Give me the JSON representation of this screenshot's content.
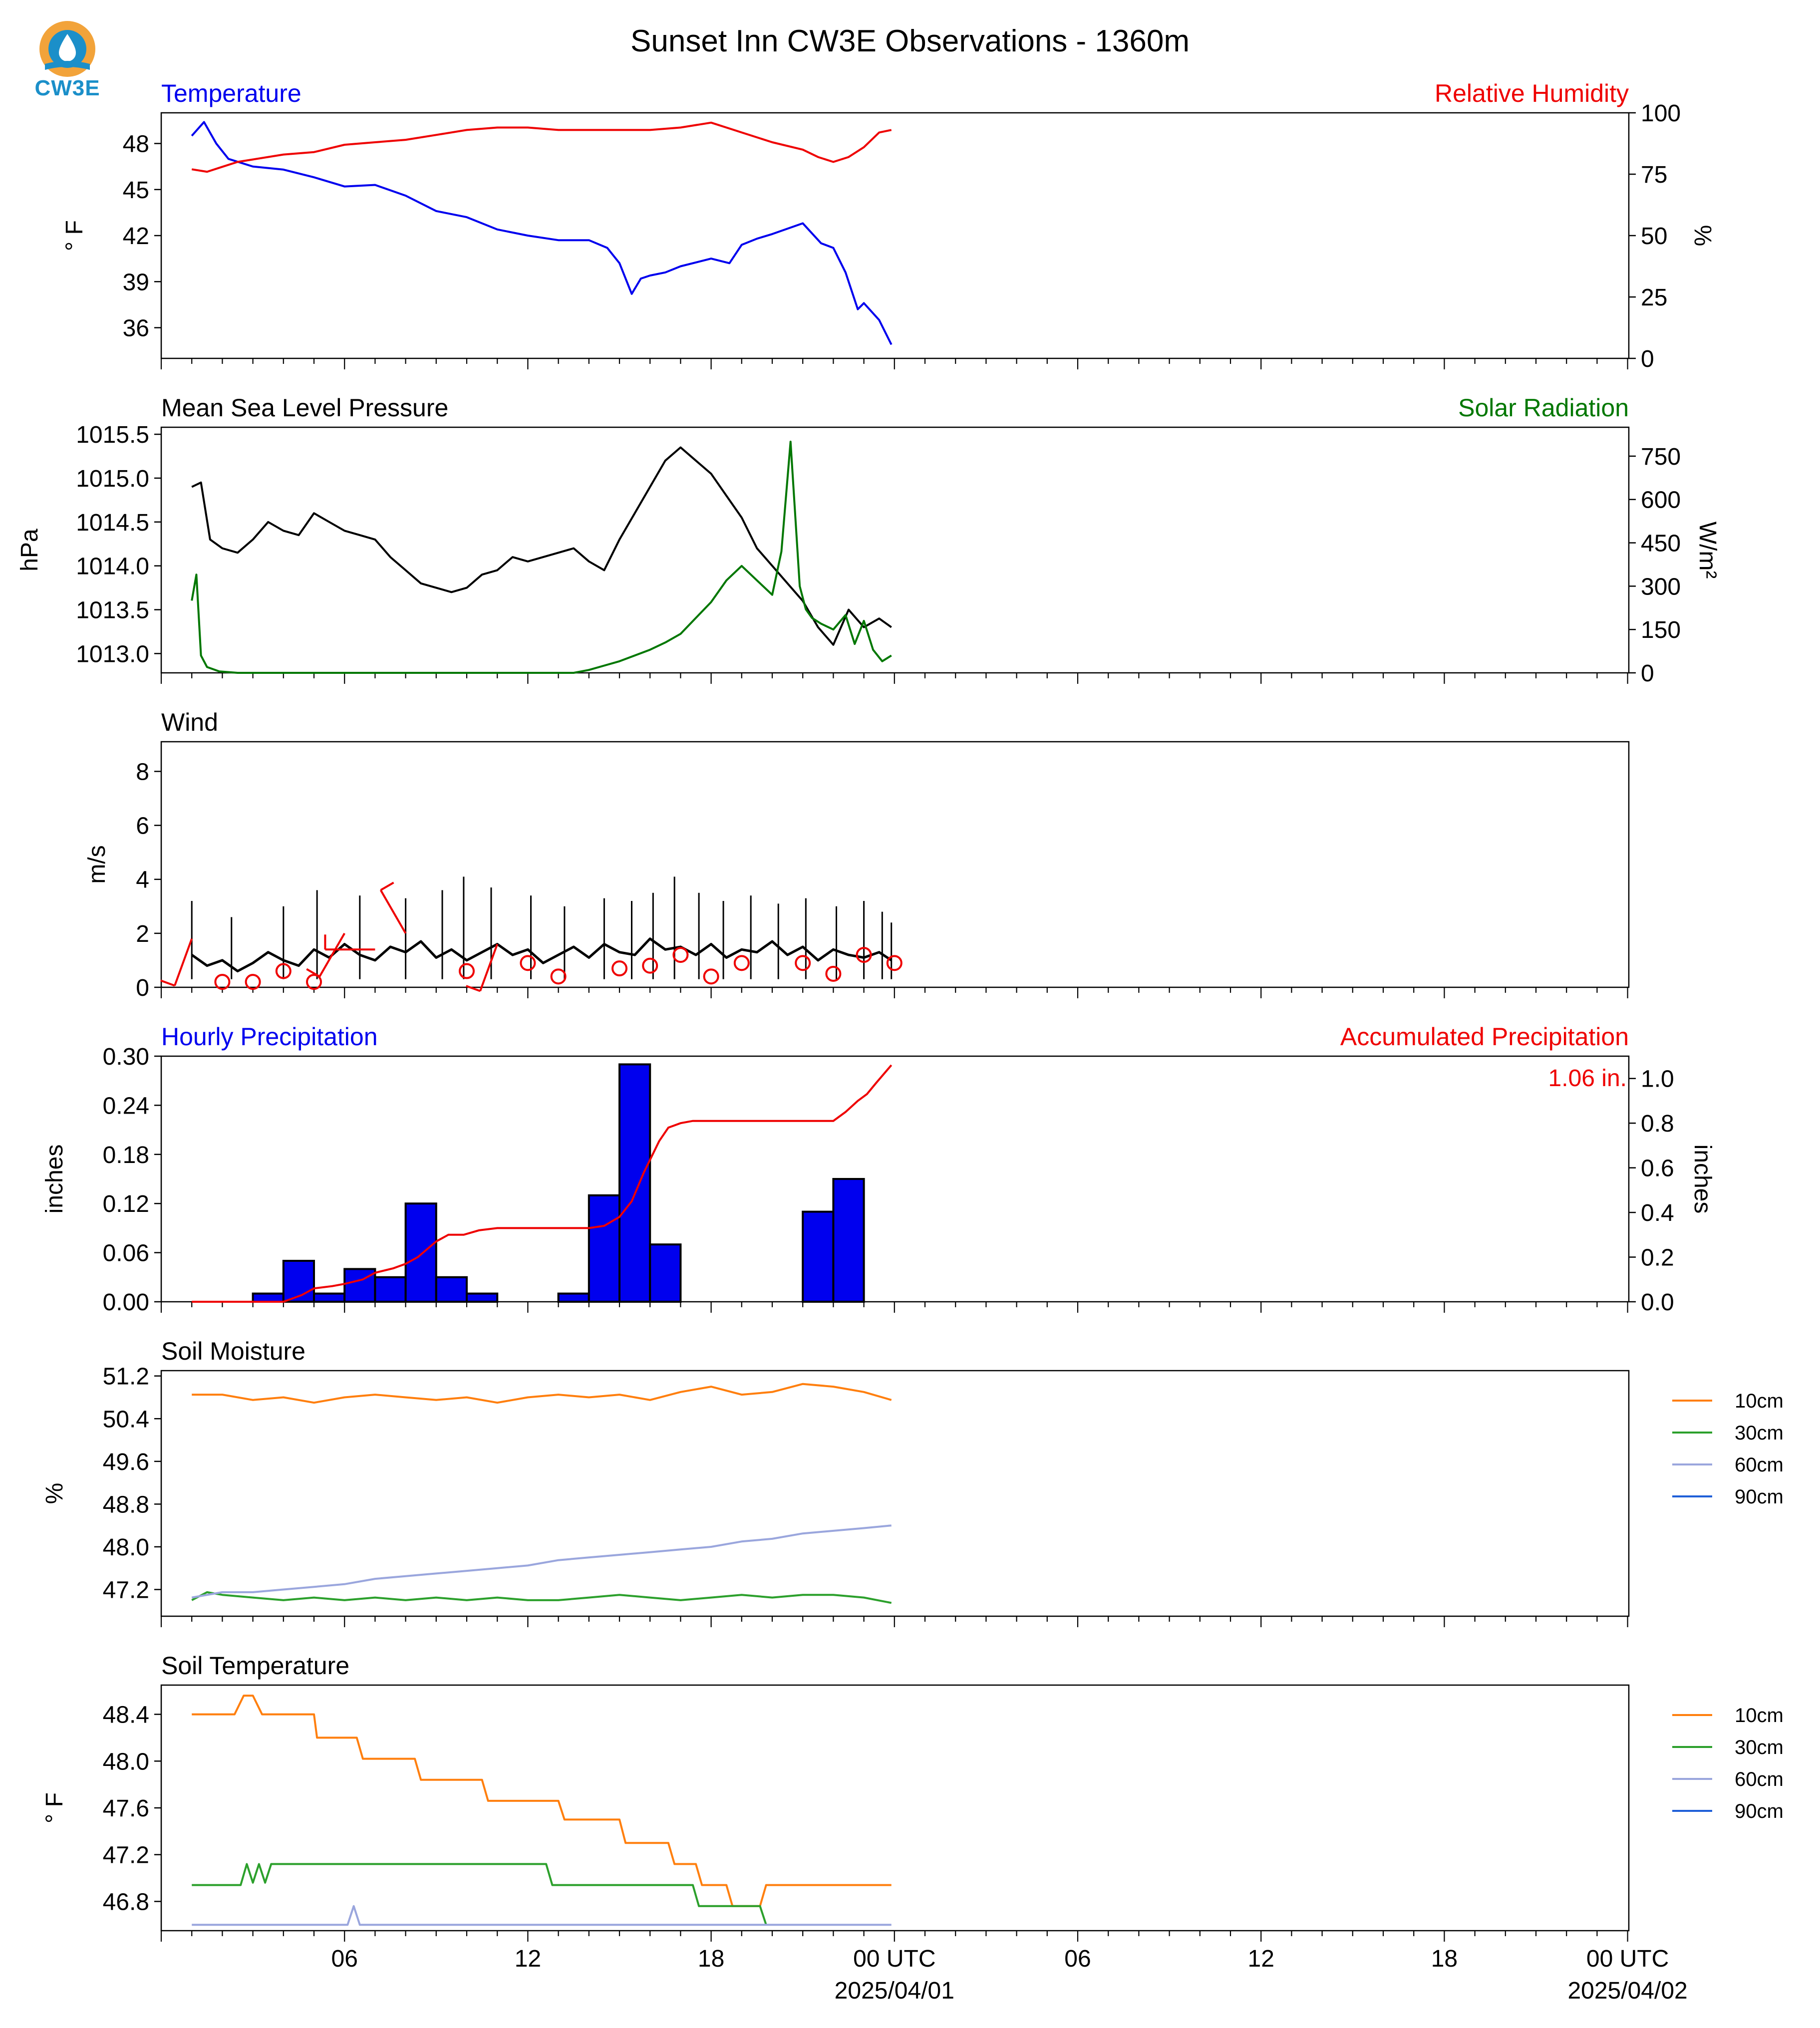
{
  "title": "Sunset Inn CW3E Observations - 1360m",
  "logo_text": "CW3E",
  "colors": {
    "temp": "#0000ee",
    "rh": "#ee0000",
    "pres": "#000000",
    "solar": "#007700",
    "sm10": "#ff7f0e",
    "sm30": "#2ca02c",
    "sm60": "#9aa6dd",
    "sm90": "#1f5fd8",
    "bar": "#0000ee"
  },
  "x_axis": {
    "tick_labels": [
      "06",
      "12",
      "18",
      "00 UTC",
      "06",
      "12",
      "18",
      "00 UTC"
    ],
    "date_labels": [
      "2025/04/01",
      "2025/04/02"
    ]
  },
  "chart_data": [
    {
      "type": "line",
      "id": "temperature",
      "title_left": "Temperature",
      "title_right": "Relative Humidity",
      "ylabel_left": "° F",
      "ylabel_right": "%",
      "ylim_left": [
        34,
        50
      ],
      "yticks_left": [
        36,
        39,
        42,
        45,
        48
      ],
      "ylim_right": [
        0,
        100
      ],
      "yticks_right": [
        0,
        25,
        50,
        75,
        100
      ],
      "series": [
        {
          "axis": "left",
          "x": [
            1,
            1.4,
            1.8,
            2.2,
            3,
            4,
            5,
            6,
            7,
            8,
            9,
            10,
            11,
            12,
            13,
            14,
            14.6,
            15,
            15.4,
            15.7,
            16,
            16.5,
            17,
            18,
            18.6,
            19,
            19.5,
            20,
            21,
            21.6,
            22,
            22.4,
            22.8,
            23,
            23.5,
            23.9
          ],
          "values": [
            48.5,
            49.4,
            48.0,
            47.0,
            46.5,
            46.3,
            45.8,
            45.2,
            45.3,
            44.6,
            43.6,
            43.2,
            42.4,
            42.0,
            41.7,
            41.7,
            41.2,
            40.2,
            38.2,
            39.2,
            39.4,
            39.6,
            40.0,
            40.5,
            40.2,
            41.4,
            41.8,
            42.1,
            42.8,
            41.5,
            41.2,
            39.6,
            37.2,
            37.6,
            36.5,
            34.9
          ]
        },
        {
          "axis": "right",
          "x": [
            1,
            1.5,
            2,
            2.5,
            3,
            4,
            5,
            6,
            7,
            8,
            9,
            10,
            11,
            12,
            13,
            14,
            15,
            16,
            17,
            18,
            18.5,
            19,
            20,
            21,
            21.5,
            22,
            22.5,
            23,
            23.5,
            23.9
          ],
          "values": [
            77,
            76,
            78,
            80,
            81,
            83,
            84,
            87,
            88,
            89,
            91,
            93,
            94,
            94,
            93,
            93,
            93,
            93,
            94,
            96,
            94,
            92,
            88,
            85,
            82,
            80,
            82,
            86,
            92,
            93
          ]
        }
      ]
    },
    {
      "type": "line",
      "id": "pressure",
      "title_left": "Mean Sea Level Pressure",
      "title_right": "Solar Radiation",
      "ylabel_left": "hPa",
      "ylabel_right": "W/m²",
      "ylim_left": [
        1012.78,
        1015.58
      ],
      "yticks_left": [
        1013.0,
        1013.5,
        1014.0,
        1014.5,
        1015.0,
        1015.5
      ],
      "ytick_labels_left": [
        "1013.0",
        "1013.5",
        "1014.0",
        "1014.5",
        "1015.0",
        "1015.5"
      ],
      "ylim_right": [
        0,
        850
      ],
      "yticks_right": [
        0,
        150,
        300,
        450,
        600,
        750
      ],
      "series": [
        {
          "axis": "left",
          "x": [
            1,
            1.3,
            1.6,
            2,
            2.5,
            3,
            3.5,
            4,
            4.5,
            5,
            5.5,
            6,
            6.5,
            7,
            7.5,
            8,
            8.5,
            9,
            9.5,
            10,
            10.5,
            11,
            11.5,
            12,
            12.5,
            13,
            13.5,
            14,
            14.5,
            15,
            15.5,
            16,
            16.5,
            17,
            17.5,
            18,
            18.5,
            19,
            19.5,
            20,
            20.5,
            21,
            21.5,
            22,
            22.5,
            23,
            23.5,
            23.9
          ],
          "values": [
            1014.9,
            1014.95,
            1014.3,
            1014.2,
            1014.15,
            1014.3,
            1014.5,
            1014.4,
            1014.35,
            1014.6,
            1014.5,
            1014.4,
            1014.35,
            1014.3,
            1014.1,
            1013.95,
            1013.8,
            1013.75,
            1013.7,
            1013.75,
            1013.9,
            1013.95,
            1014.1,
            1014.05,
            1014.1,
            1014.15,
            1014.2,
            1014.05,
            1013.95,
            1014.3,
            1014.6,
            1014.9,
            1015.2,
            1015.35,
            1015.2,
            1015.05,
            1014.8,
            1014.55,
            1014.2,
            1014.0,
            1013.8,
            1013.6,
            1013.3,
            1013.1,
            1013.5,
            1013.3,
            1013.4,
            1013.3
          ]
        },
        {
          "axis": "right",
          "x": [
            1,
            1.15,
            1.3,
            1.5,
            1.9,
            2.5,
            4,
            6,
            8,
            10,
            12,
            13,
            13.5,
            14,
            14.5,
            15,
            15.5,
            16,
            16.5,
            17,
            17.5,
            18,
            18.5,
            19,
            19.5,
            20,
            20.3,
            20.6,
            20.9,
            21.1,
            21.3,
            21.6,
            22,
            22.4,
            22.7,
            23,
            23.3,
            23.6,
            23.9
          ],
          "values": [
            250,
            340,
            60,
            20,
            5,
            0,
            0,
            0,
            0,
            0,
            0,
            0,
            0,
            10,
            25,
            40,
            60,
            80,
            105,
            135,
            190,
            245,
            320,
            370,
            320,
            270,
            420,
            800,
            300,
            220,
            190,
            170,
            150,
            200,
            100,
            180,
            80,
            40,
            60
          ]
        }
      ]
    },
    {
      "type": "line",
      "id": "wind",
      "title_left": "Wind",
      "ylabel_left": "m/s",
      "ylim_left": [
        0,
        9.1
      ],
      "yticks_left": [
        0,
        2,
        4,
        6,
        8
      ],
      "series": [
        {
          "axis": "left",
          "x": [
            1,
            1.5,
            2,
            2.5,
            3,
            3.5,
            4,
            4.5,
            5,
            5.5,
            6,
            6.5,
            7,
            7.5,
            8,
            8.5,
            9,
            9.5,
            10,
            10.5,
            11,
            11.5,
            12,
            12.5,
            13,
            13.5,
            14,
            14.5,
            15,
            15.5,
            16,
            16.5,
            17,
            17.5,
            18,
            18.5,
            19,
            19.5,
            20,
            20.5,
            21,
            21.5,
            22,
            22.5,
            23,
            23.5,
            23.9
          ],
          "values": [
            1.2,
            0.8,
            1.0,
            0.6,
            0.9,
            1.3,
            1.0,
            0.8,
            1.4,
            1.1,
            1.6,
            1.2,
            1.0,
            1.5,
            1.3,
            1.7,
            1.1,
            1.4,
            1.0,
            1.3,
            1.6,
            1.2,
            1.4,
            0.9,
            1.2,
            1.5,
            1.1,
            1.6,
            1.3,
            1.2,
            1.8,
            1.4,
            1.5,
            1.2,
            1.6,
            1.1,
            1.4,
            1.3,
            1.7,
            1.2,
            1.5,
            1.0,
            1.4,
            1.2,
            1.1,
            1.3,
            1.0
          ]
        },
        {
          "axis": "left",
          "style": "gust",
          "x": [
            1,
            2.3,
            4,
            5.1,
            6.5,
            8,
            9.2,
            9.9,
            10.8,
            12.1,
            13.2,
            14.5,
            15.4,
            16.1,
            16.8,
            17.6,
            18.4,
            19.3,
            20.2,
            21.1,
            22.1,
            23.0,
            23.6,
            23.9
          ],
          "values": [
            3.2,
            2.6,
            3.0,
            3.6,
            3.4,
            3.3,
            3.6,
            4.1,
            3.7,
            3.4,
            3.0,
            3.3,
            3.2,
            3.5,
            4.1,
            3.5,
            3.2,
            3.4,
            3.1,
            3.3,
            3.0,
            3.2,
            2.8,
            2.4
          ]
        }
      ],
      "calm_markers": {
        "x": [
          2,
          3,
          4,
          5,
          10,
          12,
          13,
          15,
          16,
          17,
          18,
          19,
          21,
          22,
          23,
          24
        ],
        "y": [
          0.2,
          0.2,
          0.6,
          0.2,
          0.6,
          0.9,
          0.4,
          0.7,
          0.8,
          1.2,
          0.4,
          0.9,
          0.9,
          0.5,
          1.2,
          0.9
        ]
      },
      "barbs": {
        "x": [
          1,
          6,
          7,
          8,
          11
        ],
        "y": [
          1.8,
          2.0,
          1.4,
          2.0,
          1.6
        ],
        "dir_deg": [
          200,
          210,
          270,
          330,
          200
        ]
      }
    },
    {
      "type": "bar",
      "id": "precipitation",
      "title_left": "Hourly Precipitation",
      "title_right": "Accumulated Precipitation",
      "ylabel_left": "inches",
      "ylabel_right": "inches",
      "ylim_left": [
        0,
        0.3
      ],
      "yticks_left": [
        0.0,
        0.06,
        0.12,
        0.18,
        0.24,
        0.3
      ],
      "ytick_labels_left": [
        "0.00",
        "0.06",
        "0.12",
        "0.18",
        "0.24",
        "0.30"
      ],
      "ylim_right": [
        0,
        1.1
      ],
      "yticks_right": [
        0,
        0.2,
        0.4,
        0.6,
        0.8,
        1.0
      ],
      "ytick_labels_right": [
        "0.0",
        "0.2",
        "0.4",
        "0.6",
        "0.8",
        "1.0"
      ],
      "total_label": "1.06 in.",
      "hours": [
        4,
        5,
        6,
        7,
        8,
        9,
        10,
        11,
        12,
        14,
        15,
        16,
        17,
        18,
        22,
        23
      ],
      "values": [
        0.01,
        0.05,
        0.01,
        0.04,
        0.03,
        0.12,
        0.03,
        0.01,
        0.0,
        0.01,
        0.13,
        0.29,
        0.07,
        0.0,
        0.11,
        0.15
      ],
      "accum_x": [
        1,
        4,
        4.6,
        5,
        5.6,
        6,
        6.6,
        7,
        7.6,
        8,
        8.4,
        9,
        9.4,
        9.9,
        10.4,
        11,
        12,
        14,
        14.5,
        15,
        15.4,
        15.8,
        16.3,
        16.6,
        17,
        17.4,
        17.8,
        18,
        20,
        21,
        22,
        22.4,
        22.8,
        23.1,
        23.4,
        23.9
      ],
      "accum_values": [
        0,
        0,
        0.03,
        0.06,
        0.07,
        0.08,
        0.1,
        0.13,
        0.15,
        0.17,
        0.2,
        0.27,
        0.3,
        0.3,
        0.32,
        0.33,
        0.33,
        0.33,
        0.34,
        0.38,
        0.45,
        0.58,
        0.72,
        0.78,
        0.8,
        0.81,
        0.81,
        0.81,
        0.81,
        0.81,
        0.81,
        0.85,
        0.9,
        0.93,
        0.98,
        1.06
      ]
    },
    {
      "type": "line",
      "id": "soil_moisture",
      "title_left": "Soil Moisture",
      "ylabel_left": "%",
      "ylim_left": [
        46.7,
        51.3
      ],
      "yticks_left": [
        47.2,
        48.0,
        48.8,
        49.6,
        50.4,
        51.2
      ],
      "ytick_labels_left": [
        "47.2",
        "48.0",
        "48.8",
        "49.6",
        "50.4",
        "51.2"
      ],
      "legend": [
        "10cm",
        "30cm",
        "60cm",
        "90cm"
      ],
      "legend_position": "outside-right",
      "series": [
        {
          "name": "10cm",
          "color_key": "sm10",
          "x": [
            1,
            2,
            3,
            4,
            5,
            6,
            7,
            8,
            9,
            10,
            11,
            12,
            13,
            14,
            15,
            16,
            17,
            18,
            19,
            20,
            21,
            22,
            23,
            23.9
          ],
          "values": [
            50.85,
            50.85,
            50.75,
            50.8,
            50.7,
            50.8,
            50.85,
            50.8,
            50.75,
            50.8,
            50.7,
            50.8,
            50.85,
            50.8,
            50.85,
            50.75,
            50.9,
            51.0,
            50.85,
            50.9,
            51.05,
            51.0,
            50.9,
            50.75
          ]
        },
        {
          "name": "30cm",
          "color_key": "sm30",
          "x": [
            1,
            1.5,
            2,
            3,
            4,
            5,
            6,
            7,
            8,
            9,
            10,
            11,
            12,
            13,
            14,
            15,
            16,
            17,
            18,
            19,
            20,
            21,
            22,
            23,
            23.9
          ],
          "values": [
            47.0,
            47.15,
            47.1,
            47.05,
            47.0,
            47.05,
            47.0,
            47.05,
            47.0,
            47.05,
            47.0,
            47.05,
            47.0,
            47.0,
            47.05,
            47.1,
            47.05,
            47.0,
            47.05,
            47.1,
            47.05,
            47.1,
            47.1,
            47.05,
            46.95
          ]
        },
        {
          "name": "60cm",
          "color_key": "sm60",
          "x": [
            1,
            2,
            3,
            4,
            5,
            6,
            7,
            8,
            9,
            10,
            11,
            12,
            13,
            14,
            15,
            16,
            17,
            18,
            19,
            20,
            21,
            22,
            23,
            23.9
          ],
          "values": [
            47.05,
            47.15,
            47.15,
            47.2,
            47.25,
            47.3,
            47.4,
            47.45,
            47.5,
            47.55,
            47.6,
            47.65,
            47.75,
            47.8,
            47.85,
            47.9,
            47.95,
            48.0,
            48.1,
            48.15,
            48.25,
            48.3,
            48.35,
            48.4
          ]
        }
      ]
    },
    {
      "type": "line",
      "id": "soil_temperature",
      "title_left": "Soil Temperature",
      "ylabel_left": "° F",
      "ylim_left": [
        46.55,
        48.65
      ],
      "yticks_left": [
        46.8,
        47.2,
        47.6,
        48.0,
        48.4
      ],
      "ytick_labels_left": [
        "46.8",
        "47.2",
        "47.6",
        "48.0",
        "48.4"
      ],
      "legend": [
        "10cm",
        "30cm",
        "60cm",
        "90cm"
      ],
      "legend_position": "outside-right",
      "series": [
        {
          "name": "10cm",
          "color_key": "sm10",
          "x": [
            1,
            2.4,
            2.7,
            3.0,
            3.3,
            5,
            5.1,
            6.4,
            6.6,
            8.3,
            8.5,
            10.5,
            10.7,
            13.0,
            13.2,
            15.0,
            15.2,
            16.6,
            16.8,
            17.5,
            17.7,
            18.5,
            18.7,
            19.6,
            19.8,
            21.0,
            21.2,
            23.9
          ],
          "values": [
            48.4,
            48.4,
            48.56,
            48.56,
            48.4,
            48.4,
            48.2,
            48.2,
            48.02,
            48.02,
            47.84,
            47.84,
            47.66,
            47.66,
            47.5,
            47.5,
            47.3,
            47.3,
            47.12,
            47.12,
            46.94,
            46.94,
            46.76,
            46.76,
            46.94,
            46.94,
            46.94,
            46.94
          ]
        },
        {
          "name": "30cm",
          "color_key": "sm30",
          "x": [
            1,
            2.6,
            2.8,
            3.0,
            3.2,
            3.4,
            3.6,
            4,
            12.6,
            12.8,
            17.4,
            17.6,
            19.6,
            19.8
          ],
          "values": [
            46.94,
            46.94,
            47.12,
            46.96,
            47.12,
            46.96,
            47.12,
            47.12,
            47.12,
            46.94,
            46.94,
            46.76,
            46.76,
            46.6
          ]
        },
        {
          "name": "60cm",
          "color_key": "sm60",
          "x": [
            1,
            6.1,
            6.3,
            6.5,
            23.9
          ],
          "values": [
            46.6,
            46.6,
            46.76,
            46.6,
            46.6
          ]
        }
      ]
    }
  ]
}
